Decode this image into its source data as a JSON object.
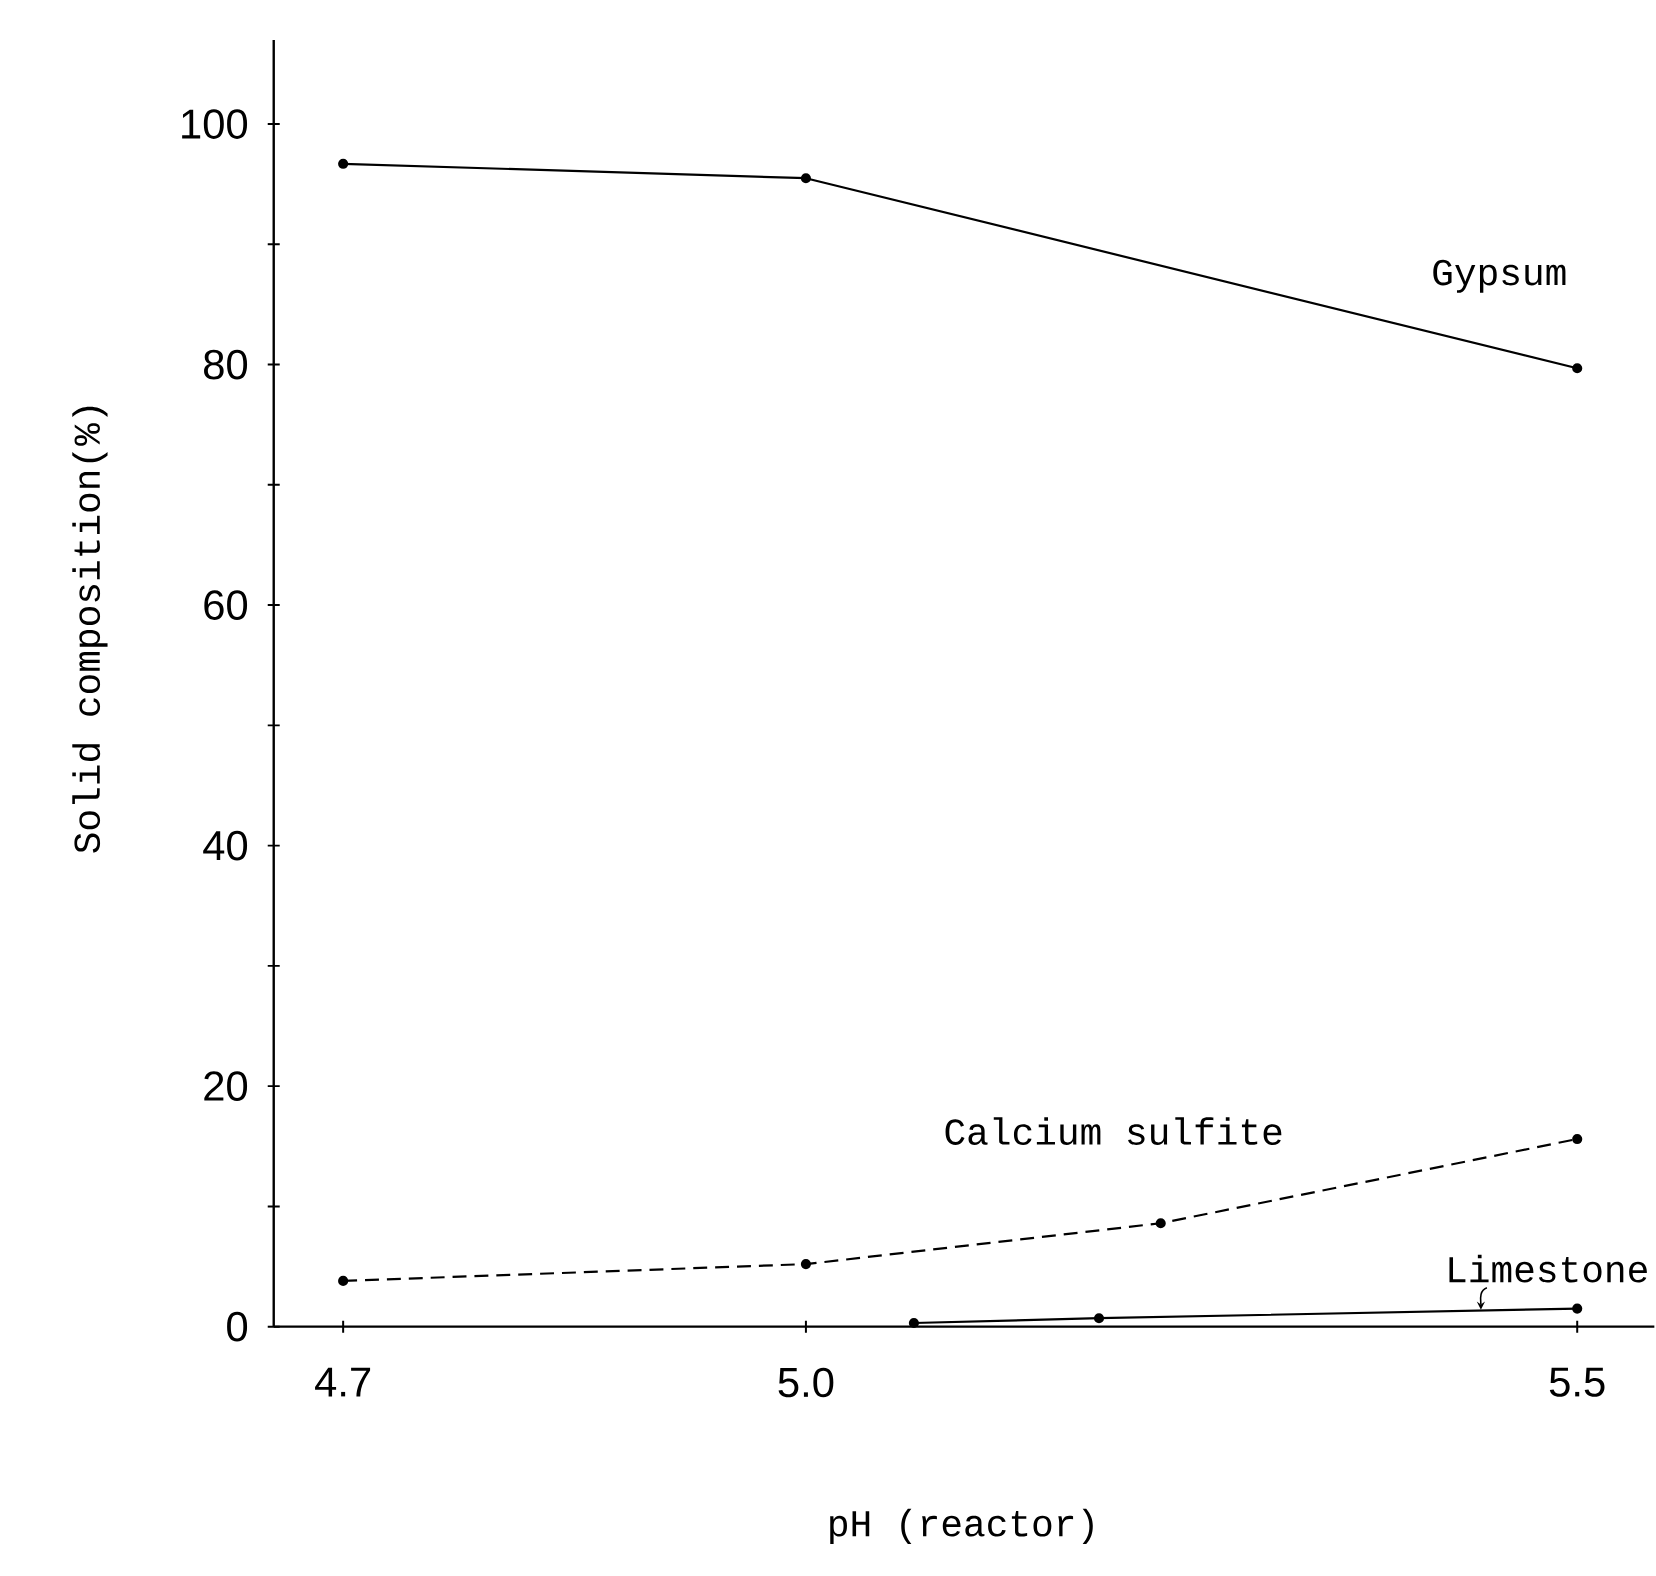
{
  "chart_data": {
    "type": "line",
    "xlabel": "pH (reactor)",
    "ylabel": "Solid composition(%)",
    "xlim": [
      4.655,
      5.55
    ],
    "ylim": [
      0,
      107
    ],
    "xticks": [
      4.7,
      {
        "value": 5.0,
        "label": "5.0"
      },
      5.5
    ],
    "yticks": [
      0,
      {
        "value": 10,
        "label": null
      },
      20,
      {
        "value": 30,
        "label": null
      },
      40,
      {
        "value": 50,
        "label": null
      },
      60,
      {
        "value": 70,
        "label": null
      },
      80,
      {
        "value": 90,
        "label": null
      },
      100
    ],
    "marker": "circle",
    "grid": false,
    "series": [
      {
        "name": "Gypsum",
        "color": "#000000",
        "line_style": "solid",
        "x": [
          4.7,
          5.0,
          5.5
        ],
        "values": [
          96.7,
          95.5,
          79.7
        ]
      },
      {
        "name": "Calcium sulfite",
        "color": "#000000",
        "line_style": "dashed",
        "x": [
          4.7,
          5.0,
          5.23,
          5.5
        ],
        "values": [
          3.8,
          5.2,
          8.6,
          15.6
        ]
      },
      {
        "name": "Limestone",
        "color": "#000000",
        "line_style": "solid",
        "x": [
          5.07,
          5.19,
          5.5
        ],
        "values": [
          0.3,
          0.7,
          1.5
        ]
      }
    ]
  }
}
